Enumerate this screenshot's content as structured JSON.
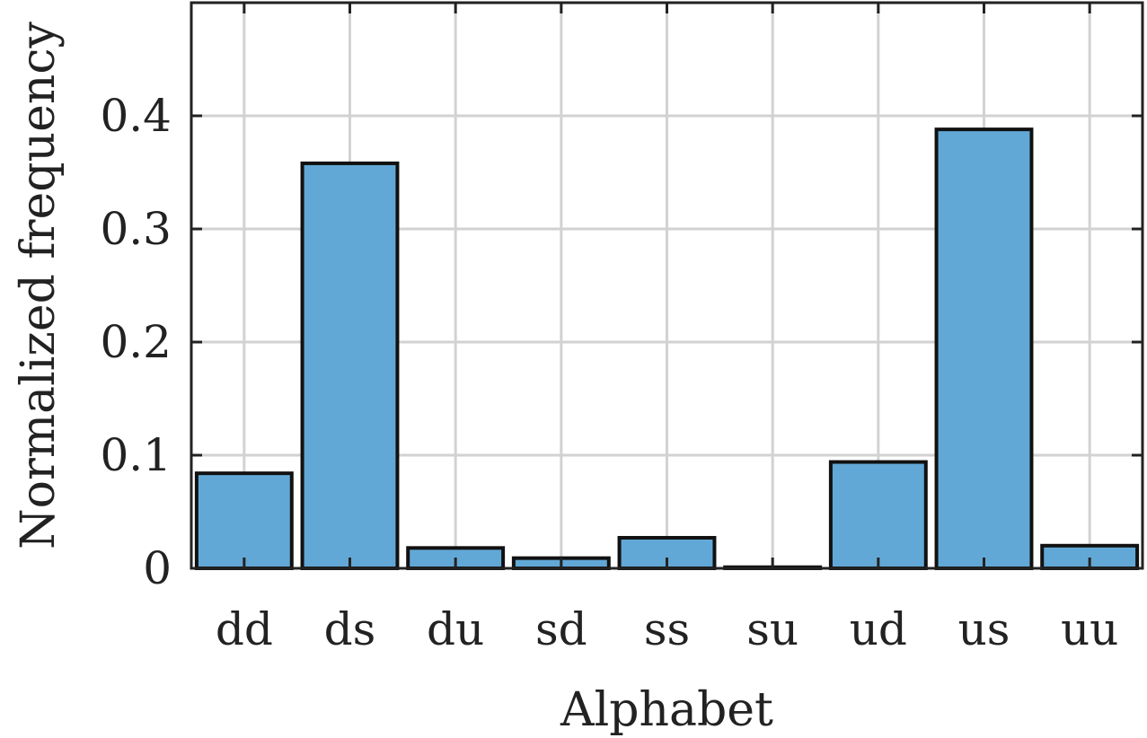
{
  "chart_data": {
    "type": "bar",
    "categories": [
      "dd",
      "ds",
      "du",
      "sd",
      "ss",
      "su",
      "ud",
      "us",
      "uu"
    ],
    "values": [
      0.084,
      0.358,
      0.018,
      0.009,
      0.027,
      0.001,
      0.094,
      0.388,
      0.02
    ],
    "xlabel": "Alphabet",
    "ylabel": "Normalized frequency",
    "ylim": [
      0,
      0.5
    ],
    "yticks": [
      0,
      0.1,
      0.2,
      0.3,
      0.4
    ],
    "ytick_labels": [
      "0",
      "0.1",
      "0.2",
      "0.3",
      "0.4"
    ],
    "grid": true,
    "colors": {
      "bar_fill": "#62a8d6",
      "bar_edge": "#111111",
      "grid": "#d2d2d2",
      "axis": "#222222"
    }
  }
}
